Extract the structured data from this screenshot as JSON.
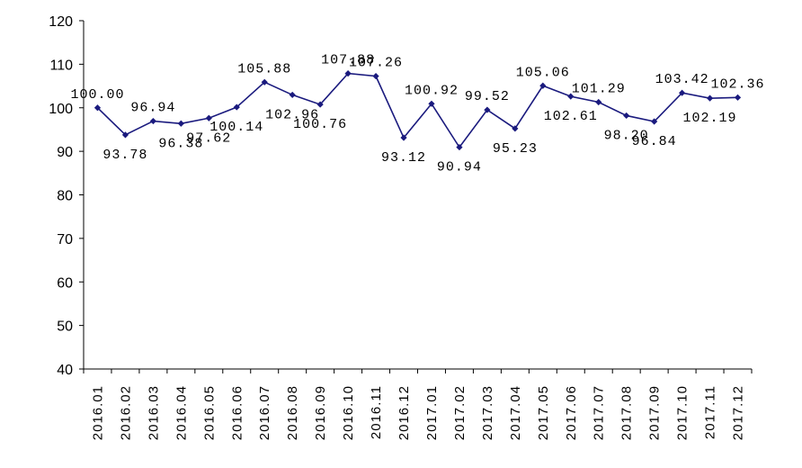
{
  "chart_data": {
    "type": "line",
    "categories": [
      "2016.01",
      "2016.02",
      "2016.03",
      "2016.04",
      "2016.05",
      "2016.06",
      "2016.07",
      "2016.08",
      "2016.09",
      "2016.10",
      "2016.11",
      "2016.12",
      "2017.01",
      "2017.02",
      "2017.03",
      "2017.04",
      "2017.05",
      "2017.06",
      "2017.07",
      "2017.08",
      "2017.09",
      "2017.10",
      "2017.11",
      "2017.12"
    ],
    "series": [
      {
        "values": [
          100.0,
          93.78,
          96.94,
          96.38,
          97.62,
          100.14,
          105.88,
          102.96,
          100.76,
          107.88,
          107.26,
          93.12,
          100.92,
          90.94,
          99.52,
          95.23,
          105.06,
          102.61,
          101.29,
          98.2,
          96.84,
          103.42,
          102.19,
          102.36
        ],
        "labels": [
          "100.00",
          "93.78",
          "96.94",
          "96.38",
          "97.62",
          "100.14",
          "105.88",
          "102.96",
          "100.76",
          "107.88",
          "107.26",
          "93.12",
          "100.92",
          "90.94",
          "99.52",
          "95.23",
          "105.06",
          "102.61",
          "101.29",
          "98.20",
          "96.84",
          "103.42",
          "102.19",
          "102.36"
        ],
        "color": "#1a1a7e"
      }
    ],
    "yticks": [
      40,
      50,
      60,
      70,
      80,
      90,
      100,
      110,
      120
    ],
    "ylim": [
      40,
      120
    ],
    "grid": false,
    "legend": "none"
  }
}
